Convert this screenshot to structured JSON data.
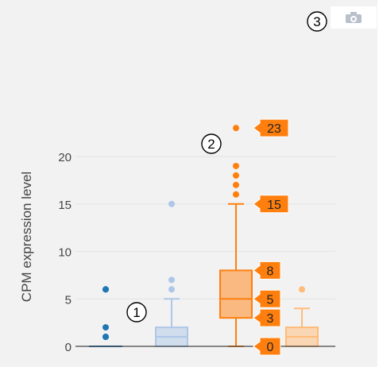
{
  "chart_data": {
    "type": "box",
    "ylabel": "CPM expression level",
    "ylim": [
      0,
      23.7
    ],
    "yticks": [
      0,
      5,
      10,
      15,
      20
    ],
    "grid": true,
    "series": [
      {
        "color": "#1f77b4",
        "box_color": "#1f77b4",
        "min": 0,
        "q1": 0,
        "median": 0,
        "q3": 0,
        "max": 0,
        "outliers": [
          1,
          1,
          2,
          6,
          6
        ]
      },
      {
        "color": "#aec7e8",
        "box_color": "#aec7e8",
        "min": 0,
        "q1": 0,
        "median": 1,
        "q3": 2,
        "max": 5,
        "outliers": [
          6,
          7,
          15
        ]
      },
      {
        "color": "#ff7f0e",
        "box_color": "#ff7f0e",
        "min": 0,
        "q1": 3,
        "median": 5,
        "q3": 8,
        "max": 15,
        "outliers": [
          16,
          17,
          18,
          19,
          23
        ]
      },
      {
        "color": "#ffbb78",
        "box_color": "#ffbb78",
        "min": 0,
        "q1": 0,
        "median": 1,
        "q3": 2,
        "max": 4,
        "outliers": [
          6
        ]
      }
    ],
    "hover_labels": [
      {
        "value": 23,
        "text": "23"
      },
      {
        "value": 15,
        "text": "15"
      },
      {
        "value": 8,
        "text": "8"
      },
      {
        "value": 5,
        "text": "5"
      },
      {
        "value": 3,
        "text": "3"
      },
      {
        "value": 0,
        "text": "0"
      }
    ]
  },
  "annotations": [
    "1",
    "2",
    "3"
  ],
  "icons": {
    "modebar": "camera-icon"
  }
}
